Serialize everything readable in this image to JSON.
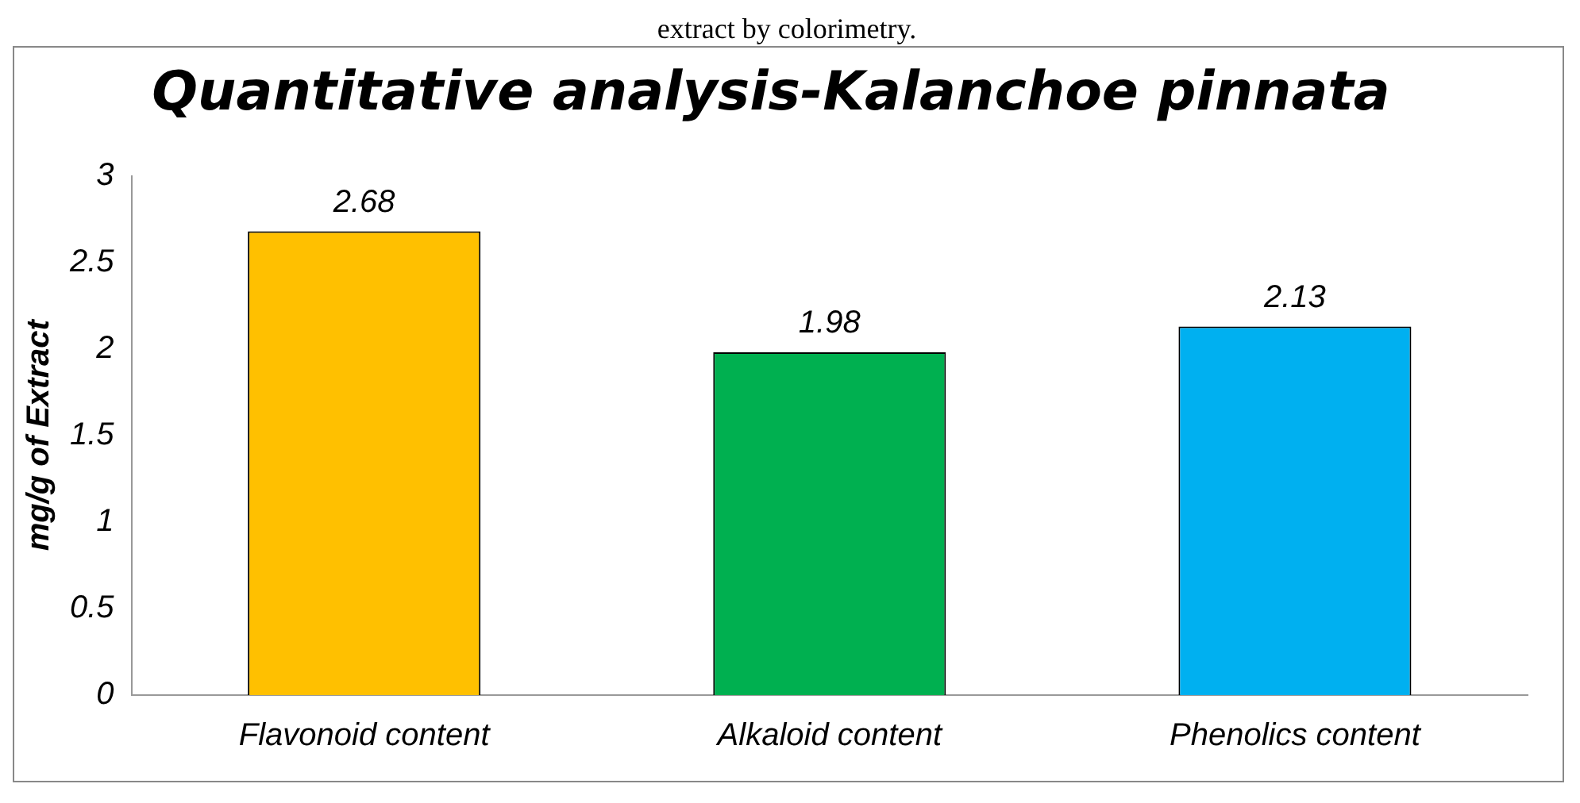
{
  "chart_data": {
    "type": "bar",
    "title": "Quantitative analysis-Kalanchoe pinnata",
    "ylabel": "mg/g of Extract",
    "annotations": [
      "extract by colorimetry."
    ],
    "categories": [
      "Flavonoid content",
      "Alkaloid content",
      "Phenolics content"
    ],
    "values": [
      2.68,
      1.98,
      2.13
    ],
    "colors": [
      "#ffc000",
      "#00b050",
      "#00b0f0"
    ],
    "data_labels": true,
    "ylim": [
      0,
      3
    ],
    "yticks": [
      0,
      0.5,
      1,
      1.5,
      2,
      2.5,
      3
    ],
    "grid": false,
    "legend": false
  }
}
